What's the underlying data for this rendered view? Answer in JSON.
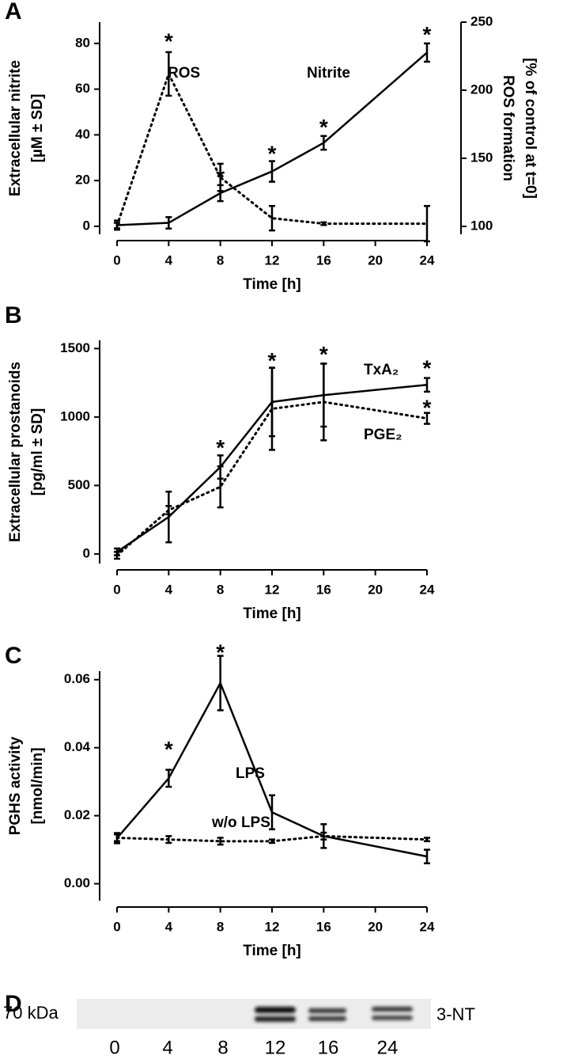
{
  "chart_data": [
    {
      "type": "line",
      "panel": "A",
      "xlabel": "Time [h]",
      "ylabel": [
        "Extracellular nitrite",
        "[µM ± SD]"
      ],
      "y2label": [
        "ROS formation",
        "[% of control at t=0]"
      ],
      "x": [
        0,
        4,
        8,
        12,
        16,
        24
      ],
      "xlim": [
        0,
        24
      ],
      "xticks": [
        0,
        4,
        8,
        12,
        16,
        20,
        24
      ],
      "ylim": [
        -3.5,
        89.3
      ],
      "yticks": [
        0,
        20,
        40,
        60,
        80
      ],
      "y2lim": [
        94.2,
        250
      ],
      "y2ticks": [
        100,
        150,
        200,
        250
      ],
      "series": [
        {
          "name": "ROS",
          "color": "#000000",
          "style": "dotted",
          "axis": "y2",
          "values": [
            100.6,
            212,
            136,
            106,
            102,
            102
          ],
          "errors": [
            2,
            16,
            10,
            9,
            1,
            13
          ]
        },
        {
          "name": "Nitrite",
          "color": "#000000",
          "style": "solid",
          "values": [
            0.5,
            1.5,
            14.5,
            24,
            36.5,
            76
          ],
          "errors": [
            2,
            2.5,
            3.5,
            4.5,
            3,
            4
          ]
        }
      ],
      "annotations": [
        {
          "text": "*",
          "x": 4,
          "y": 82.4
        },
        {
          "text": "*",
          "x": 8,
          "y": 22.9
        },
        {
          "text": "*",
          "x": 12,
          "y": 33.2
        },
        {
          "text": "*",
          "x": 16,
          "y": 44.7
        },
        {
          "text": "*",
          "x": 24,
          "y": 85.2
        }
      ]
    },
    {
      "type": "line",
      "panel": "B",
      "xlabel": "Time [h]",
      "ylabel": [
        "Extracellular prostanoids",
        "[pg/ml ± SD]"
      ],
      "x": [
        0,
        4,
        8,
        12,
        16,
        24
      ],
      "xlim": [
        0,
        24
      ],
      "xticks": [
        0,
        4,
        8,
        12,
        16,
        20,
        24
      ],
      "ylim": [
        -70,
        1560
      ],
      "yticks": [
        0,
        500,
        1000,
        1500
      ],
      "series": [
        {
          "name": "TxA₂",
          "color": "#000000",
          "style": "solid",
          "values": [
            15,
            270,
            635,
            1110,
            1160,
            1235
          ],
          "errors": [
            25,
            185,
            85,
            250,
            230,
            50
          ]
        },
        {
          "name": "PGE₂",
          "color": "#000000",
          "style": "dotted",
          "values": [
            -10,
            320,
            490,
            1060,
            1110,
            990
          ],
          "errors": [
            25,
            30,
            150,
            300,
            280,
            40
          ]
        }
      ],
      "annotations": [
        {
          "text": "*",
          "x": 8,
          "y": 800
        },
        {
          "text": "*",
          "x": 12,
          "y": 1435
        },
        {
          "text": "*",
          "x": 16,
          "y": 1480
        },
        {
          "text": "*",
          "x": 24,
          "y": 1380
        },
        {
          "text": "*",
          "x": 24,
          "y": 1090
        }
      ]
    },
    {
      "type": "line",
      "panel": "C",
      "xlabel": "Time [h]",
      "ylabel": [
        "PGHS activity",
        "[nmol/min]"
      ],
      "x": [
        0,
        4,
        8,
        12,
        16,
        24
      ],
      "xlim": [
        0,
        24
      ],
      "xticks": [
        0,
        4,
        8,
        12,
        16,
        20,
        24
      ],
      "ylim": [
        -0.005,
        0.0625
      ],
      "yticks": [
        {
          "value": 0,
          "label": "0.00"
        },
        0.02,
        0.04,
        0.06
      ],
      "series": [
        {
          "name": "LPS",
          "color": "#000000",
          "style": "solid",
          "values": [
            0.0134,
            0.031,
            0.059,
            0.021,
            0.014,
            0.008
          ],
          "errors": [
            0.0015,
            0.0025,
            0.008,
            0.005,
            0.0035,
            0.002
          ]
        },
        {
          "name": "w/o LPS",
          "color": "#000000",
          "style": "dotted",
          "values": [
            0.0135,
            0.013,
            0.0125,
            0.0125,
            0.014,
            0.013
          ],
          "errors": [
            0.001,
            0.001,
            0.001,
            0.0005,
            0.001,
            0.0005
          ]
        }
      ],
      "annotations": [
        {
          "text": "*",
          "x": 4,
          "y": 0.0405
        },
        {
          "text": "*",
          "x": 8,
          "y": 0.069
        }
      ]
    }
  ],
  "blot": {
    "panel": "D",
    "marker": "70 kDa",
    "label": "3-NT",
    "lanes": [
      "0",
      "4",
      "8",
      "12",
      "16",
      "24"
    ]
  }
}
